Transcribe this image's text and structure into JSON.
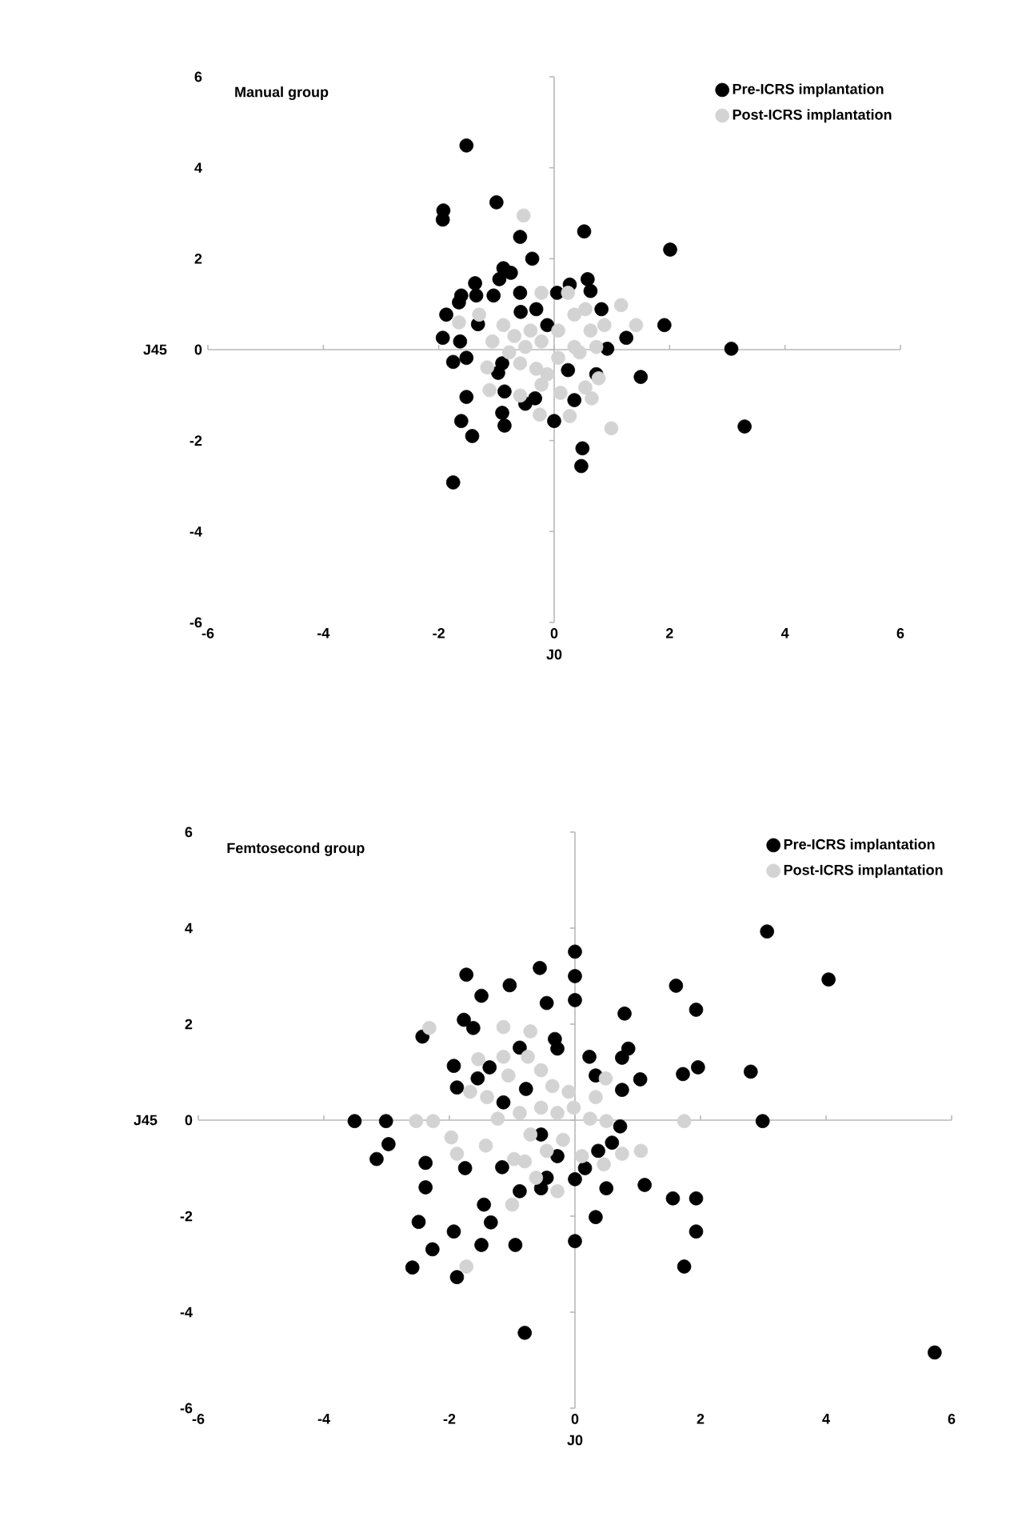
{
  "chart_data": [
    {
      "type": "scatter",
      "title": "Manual group",
      "xlabel": "J0",
      "ylabel": "J45",
      "xlim": [
        -6,
        6
      ],
      "ylim": [
        -6,
        6
      ],
      "xticks": [
        -6,
        -4,
        -2,
        0,
        2,
        4,
        6
      ],
      "yticks": [
        -6,
        -4,
        -2,
        0,
        2,
        4,
        6
      ],
      "legend": "top right",
      "series": [
        {
          "name": "Pre-ICRS implantation",
          "color": "#000000",
          "x": [
            -1.52,
            -1.92,
            -1.93,
            -1.0,
            -0.59,
            -0.38,
            0.52,
            2.01,
            -0.88,
            -0.75,
            -0.95,
            -1.37,
            -1.35,
            -1.61,
            -1.65,
            -1.05,
            -0.59,
            -0.58,
            -1.87,
            -1.32,
            -1.93,
            -1.63,
            -1.75,
            -1.52,
            0.58,
            0.63,
            0.27,
            0.05,
            0.82,
            1.25,
            1.91,
            0.92,
            3.07,
            1.5,
            3.3,
            -0.9,
            -0.97,
            -0.86,
            -1.52,
            -0.9,
            -0.86,
            -1.61,
            -1.42,
            -1.75,
            -0.5,
            -0.33,
            0.0,
            0.35,
            0.24,
            0.73,
            0.49,
            0.47,
            -0.31,
            -0.12
          ],
          "values": [
            4.49,
            3.06,
            2.86,
            3.24,
            2.48,
            2.0,
            2.6,
            2.2,
            1.79,
            1.69,
            1.55,
            1.46,
            1.19,
            1.19,
            1.04,
            1.19,
            1.25,
            0.83,
            0.77,
            0.56,
            0.26,
            0.18,
            -0.27,
            -0.18,
            1.55,
            1.29,
            1.43,
            1.25,
            0.89,
            0.26,
            0.54,
            0.02,
            0.02,
            -0.6,
            -1.69,
            -0.3,
            -0.51,
            -0.92,
            -1.04,
            -1.39,
            -1.67,
            -1.57,
            -1.9,
            -2.92,
            -1.19,
            -1.07,
            -1.57,
            -1.11,
            -0.45,
            -0.54,
            -2.17,
            -2.56,
            0.89,
            0.54
          ]
        },
        {
          "name": "Post-ICRS implantation",
          "color": "#d3d3d3",
          "x": [
            -0.53,
            -0.22,
            0.24,
            1.16,
            1.42,
            0.87,
            -1.3,
            -1.65,
            -0.88,
            -1.07,
            -0.69,
            -0.41,
            -0.22,
            0.07,
            0.35,
            0.54,
            0.63,
            0.44,
            0.73,
            -1.16,
            -0.59,
            -0.31,
            -0.12,
            0.77,
            -1.12,
            -0.59,
            -0.22,
            0.11,
            0.54,
            0.65,
            -0.25,
            0.27,
            0.99,
            -0.78,
            0.07,
            0.35,
            -0.5
          ],
          "values": [
            2.95,
            1.25,
            1.25,
            0.98,
            0.54,
            0.54,
            0.77,
            0.6,
            0.54,
            0.18,
            0.3,
            0.42,
            0.18,
            0.42,
            0.77,
            0.89,
            0.42,
            -0.06,
            0.06,
            -0.39,
            -0.3,
            -0.42,
            -0.54,
            -0.63,
            -0.89,
            -1.01,
            -0.77,
            -0.95,
            -0.83,
            -1.07,
            -1.43,
            -1.46,
            -1.73,
            -0.06,
            -0.18,
            0.06,
            0.06
          ]
        }
      ]
    },
    {
      "type": "scatter",
      "title": "Femtosecond group",
      "xlabel": "J0",
      "ylabel": "J45",
      "xlim": [
        -6,
        6
      ],
      "ylim": [
        -6,
        6
      ],
      "xticks": [
        -6,
        -4,
        -2,
        0,
        2,
        4,
        6
      ],
      "yticks": [
        -6,
        -4,
        -2,
        0,
        2,
        4,
        6
      ],
      "legend": "top right",
      "series": [
        {
          "name": "Pre-ICRS implantation",
          "color": "#000000",
          "x": [
            3.06,
            4.04,
            5.73,
            -0.8,
            0.0,
            0.0,
            0.0,
            -0.56,
            -0.45,
            -1.04,
            -1.73,
            -1.49,
            -1.77,
            -1.62,
            -2.43,
            -1.93,
            -1.88,
            -1.55,
            -1.36,
            -0.88,
            -0.32,
            -0.28,
            0.23,
            0.33,
            0.79,
            0.85,
            0.75,
            0.75,
            1.04,
            1.61,
            1.93,
            1.72,
            1.96,
            2.8,
            2.99,
            -3.51,
            -3.01,
            -2.97,
            -3.16,
            -2.38,
            -1.75,
            -2.38,
            -1.16,
            -1.45,
            -1.34,
            -2.49,
            -1.93,
            -2.27,
            -1.49,
            -0.95,
            -2.59,
            -1.88,
            0.0,
            0.33,
            0.0,
            -0.45,
            -0.54,
            -0.88,
            0.16,
            0.5,
            1.11,
            1.56,
            1.93,
            1.93,
            1.74,
            0.72,
            0.59,
            0.37,
            -0.28,
            -0.78,
            -1.14,
            -0.54
          ],
          "values": [
            3.93,
            2.93,
            -4.84,
            -4.43,
            3.51,
            3.0,
            2.5,
            3.17,
            2.44,
            2.81,
            3.03,
            2.59,
            2.09,
            1.92,
            1.74,
            1.13,
            0.68,
            0.87,
            1.1,
            1.51,
            1.69,
            1.49,
            1.32,
            0.93,
            2.22,
            1.49,
            1.3,
            0.63,
            0.85,
            2.8,
            2.3,
            0.96,
            1.1,
            1.01,
            -0.02,
            -0.02,
            -0.02,
            -0.5,
            -0.81,
            -0.89,
            -1.0,
            -1.4,
            -0.98,
            -1.76,
            -2.13,
            -2.12,
            -2.32,
            -2.69,
            -2.6,
            -2.6,
            -3.07,
            -3.27,
            -2.52,
            -2.02,
            -1.23,
            -1.2,
            -1.42,
            -1.48,
            -1.0,
            -1.42,
            -1.35,
            -1.63,
            -1.63,
            -2.32,
            -3.05,
            -0.13,
            -0.47,
            -0.64,
            -0.75,
            0.65,
            0.37,
            -0.3
          ]
        },
        {
          "name": "Post-ICRS implantation",
          "color": "#d3d3d3",
          "x": [
            -2.32,
            -1.14,
            -0.71,
            -1.54,
            -1.14,
            -0.75,
            -1.67,
            -1.4,
            -2.53,
            -2.26,
            1.74,
            -1.97,
            -1.88,
            -1.42,
            -0.97,
            -1.0,
            -1.73,
            -0.28,
            -0.62,
            0.11,
            0.46,
            0.75,
            1.05,
            0.49,
            0.33,
            -0.1,
            -0.54,
            -0.36,
            -1.06,
            -1.23,
            -0.88,
            -0.54,
            -0.28,
            -0.02,
            0.24,
            0.5,
            -0.71,
            -0.19,
            -0.45,
            -0.8
          ],
          "values": [
            1.92,
            1.94,
            1.85,
            1.27,
            1.32,
            1.32,
            0.59,
            0.48,
            -0.02,
            -0.02,
            -0.02,
            -0.36,
            -0.7,
            -0.53,
            -0.81,
            -1.76,
            -3.05,
            -1.48,
            -1.2,
            -0.75,
            -0.92,
            -0.7,
            -0.64,
            0.87,
            0.48,
            0.59,
            1.04,
            0.71,
            0.93,
            0.03,
            0.15,
            0.26,
            0.15,
            0.26,
            0.03,
            -0.02,
            -0.3,
            -0.41,
            -0.64,
            -0.86
          ]
        }
      ]
    }
  ]
}
